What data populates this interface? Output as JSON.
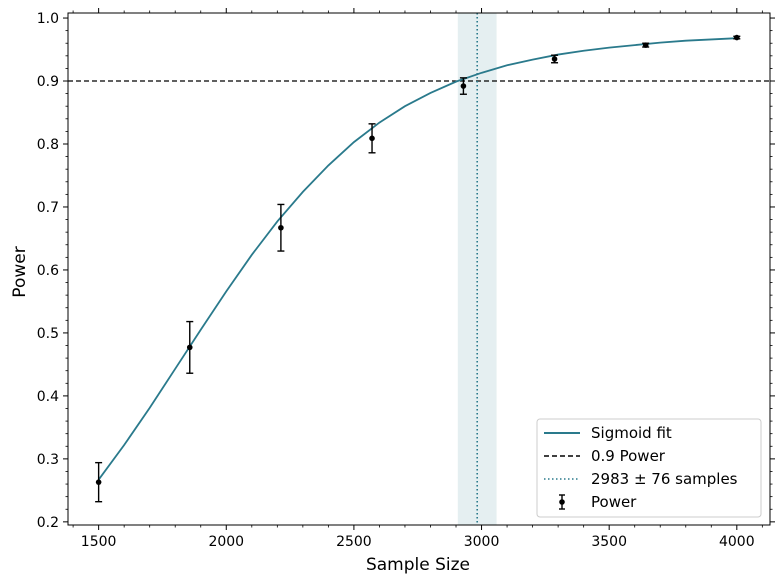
{
  "chart_data": {
    "type": "line",
    "xlabel": "Sample Size",
    "ylabel": "Power",
    "xlim": [
      1380,
      4130
    ],
    "ylim": [
      0.195,
      1.008
    ],
    "x_ticks": [
      1500,
      2000,
      2500,
      3000,
      3500,
      4000
    ],
    "y_ticks": [
      0.2,
      0.3,
      0.4,
      0.5,
      0.6,
      0.7,
      0.8,
      0.9,
      1.0
    ],
    "x_tick_labels": [
      "1500",
      "2000",
      "2500",
      "3000",
      "3500",
      "4000"
    ],
    "y_tick_labels": [
      "0.2",
      "0.3",
      "0.4",
      "0.5",
      "0.6",
      "0.7",
      "0.8",
      "0.9",
      "1.0"
    ],
    "grid": false,
    "legend_position": "bottom-right",
    "colors": {
      "fit": "#2a7a8c",
      "threshold": "#000000",
      "marker": "#2a7a8c",
      "band": "#2a7a8c",
      "points": "#000000"
    },
    "power_points": {
      "name": "Power",
      "x": [
        1500,
        1857,
        2214,
        2571,
        2929,
        3286,
        3643,
        4000
      ],
      "y": [
        0.263,
        0.477,
        0.667,
        0.809,
        0.892,
        0.935,
        0.957,
        0.969
      ],
      "err": [
        0.031,
        0.041,
        0.037,
        0.023,
        0.013,
        0.006,
        0.003,
        0.002
      ]
    },
    "sigmoid_fit": {
      "name": "Sigmoid fit",
      "x": [
        1500,
        1600,
        1700,
        1800,
        1900,
        2000,
        2100,
        2200,
        2300,
        2400,
        2500,
        2600,
        2700,
        2800,
        2900,
        3000,
        3100,
        3200,
        3300,
        3400,
        3500,
        3600,
        3700,
        3800,
        3900,
        4000
      ],
      "y": [
        0.267,
        0.322,
        0.381,
        0.443,
        0.505,
        0.566,
        0.624,
        0.677,
        0.724,
        0.766,
        0.803,
        0.834,
        0.86,
        0.881,
        0.899,
        0.913,
        0.925,
        0.934,
        0.942,
        0.948,
        0.953,
        0.957,
        0.961,
        0.964,
        0.966,
        0.968
      ]
    },
    "threshold": {
      "name": "0.9 Power",
      "y": 0.9
    },
    "estimate": {
      "name": "2983 ± 76 samples",
      "x": 2983,
      "uncertainty": 76
    },
    "legend": [
      {
        "key": "fit",
        "label": "Sigmoid fit"
      },
      {
        "key": "threshold",
        "label": "0.9 Power"
      },
      {
        "key": "estimate",
        "label": "2983 ± 76 samples"
      },
      {
        "key": "points",
        "label": "Power"
      }
    ]
  }
}
